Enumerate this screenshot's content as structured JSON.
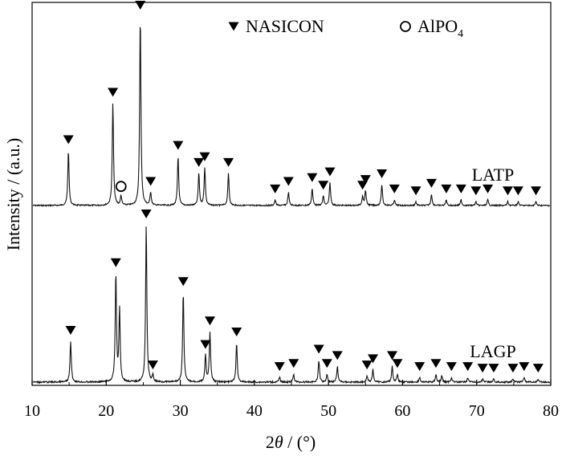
{
  "chart_data": {
    "type": "line",
    "xlabel_prefix": "2",
    "xlabel_theta": "θ",
    "xlabel_suffix": " / (°)",
    "ylabel": "Intensity / (a.u.)",
    "xlim": [
      10,
      80
    ],
    "x_ticks": [
      10,
      20,
      30,
      40,
      50,
      60,
      70,
      80
    ],
    "grid": false,
    "legend": [
      {
        "marker": "filled-triangle-down",
        "label": "NASICON"
      },
      {
        "marker": "open-circle",
        "label_main": "AlPO",
        "label_sub": "4"
      }
    ],
    "series": [
      {
        "name": "LATP",
        "peaks": [
          {
            "x": 14.9,
            "h": 0.29
          },
          {
            "x": 20.9,
            "h": 0.54
          },
          {
            "x": 22.0,
            "h": 0.05
          },
          {
            "x": 24.6,
            "h": 1.0
          },
          {
            "x": 26.0,
            "h": 0.07
          },
          {
            "x": 29.7,
            "h": 0.26
          },
          {
            "x": 32.5,
            "h": 0.17
          },
          {
            "x": 33.3,
            "h": 0.2
          },
          {
            "x": 36.5,
            "h": 0.17
          },
          {
            "x": 42.8,
            "h": 0.03
          },
          {
            "x": 44.6,
            "h": 0.07
          },
          {
            "x": 47.8,
            "h": 0.09
          },
          {
            "x": 49.3,
            "h": 0.05
          },
          {
            "x": 50.2,
            "h": 0.12
          },
          {
            "x": 54.6,
            "h": 0.05
          },
          {
            "x": 55.0,
            "h": 0.08
          },
          {
            "x": 57.2,
            "h": 0.11
          },
          {
            "x": 58.9,
            "h": 0.03
          },
          {
            "x": 61.8,
            "h": 0.02
          },
          {
            "x": 63.9,
            "h": 0.06
          },
          {
            "x": 65.9,
            "h": 0.03
          },
          {
            "x": 67.9,
            "h": 0.03
          },
          {
            "x": 69.9,
            "h": 0.02
          },
          {
            "x": 71.5,
            "h": 0.03
          },
          {
            "x": 74.2,
            "h": 0.02
          },
          {
            "x": 75.6,
            "h": 0.02
          },
          {
            "x": 78.0,
            "h": 0.02
          }
        ],
        "nasicon_markers": [
          14.9,
          20.9,
          24.6,
          26.0,
          29.7,
          32.5,
          33.3,
          36.5,
          42.8,
          44.6,
          47.8,
          49.3,
          50.2,
          54.6,
          55.0,
          57.2,
          58.9,
          61.8,
          63.9,
          65.9,
          67.9,
          69.9,
          71.5,
          74.2,
          75.6,
          78.0
        ],
        "alpo4_markers": [
          22.0
        ]
      },
      {
        "name": "LAGP",
        "peaks": [
          {
            "x": 15.2,
            "h": 0.26
          },
          {
            "x": 21.3,
            "h": 0.69
          },
          {
            "x": 21.8,
            "h": 0.46
          },
          {
            "x": 25.4,
            "h": 1.0
          },
          {
            "x": 26.3,
            "h": 0.04
          },
          {
            "x": 30.4,
            "h": 0.57
          },
          {
            "x": 33.4,
            "h": 0.17
          },
          {
            "x": 34.0,
            "h": 0.32
          },
          {
            "x": 37.6,
            "h": 0.25
          },
          {
            "x": 43.4,
            "h": 0.03
          },
          {
            "x": 45.3,
            "h": 0.05
          },
          {
            "x": 48.7,
            "h": 0.14
          },
          {
            "x": 49.8,
            "h": 0.05
          },
          {
            "x": 51.2,
            "h": 0.1
          },
          {
            "x": 55.2,
            "h": 0.04
          },
          {
            "x": 56.0,
            "h": 0.08
          },
          {
            "x": 58.6,
            "h": 0.1
          },
          {
            "x": 59.3,
            "h": 0.05
          },
          {
            "x": 62.3,
            "h": 0.03
          },
          {
            "x": 64.5,
            "h": 0.05
          },
          {
            "x": 65.3,
            "h": 0.04
          },
          {
            "x": 66.6,
            "h": 0.03
          },
          {
            "x": 68.8,
            "h": 0.03
          },
          {
            "x": 70.8,
            "h": 0.02
          },
          {
            "x": 72.3,
            "h": 0.02
          },
          {
            "x": 74.9,
            "h": 0.02
          },
          {
            "x": 76.4,
            "h": 0.03
          },
          {
            "x": 78.3,
            "h": 0.02
          }
        ],
        "nasicon_markers": [
          15.2,
          21.3,
          25.4,
          26.3,
          30.4,
          33.4,
          34.0,
          37.6,
          43.4,
          45.3,
          48.7,
          49.8,
          51.2,
          55.2,
          56.0,
          58.6,
          59.3,
          62.3,
          64.5,
          66.6,
          68.8,
          70.8,
          72.3,
          74.9,
          76.4,
          78.3
        ],
        "alpo4_markers": []
      }
    ]
  }
}
